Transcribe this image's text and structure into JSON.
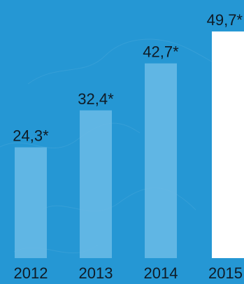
{
  "chart_data": {
    "type": "bar",
    "title": "",
    "xlabel": "",
    "ylabel": "",
    "categories": [
      "2012",
      "2013",
      "2014",
      "2015"
    ],
    "values": [
      24.3,
      32.4,
      42.7,
      49.7
    ],
    "value_labels": [
      "24,3*",
      "32,4*",
      "42,7*",
      "49,7*"
    ],
    "ylim": [
      0,
      52
    ],
    "grid": false,
    "legend": "none",
    "colors": {
      "background": "#2597d4",
      "bar": "#6bbbe6",
      "highlight_bar": "#ffffff",
      "text": "#0f1b26"
    },
    "highlight_index": 3
  }
}
